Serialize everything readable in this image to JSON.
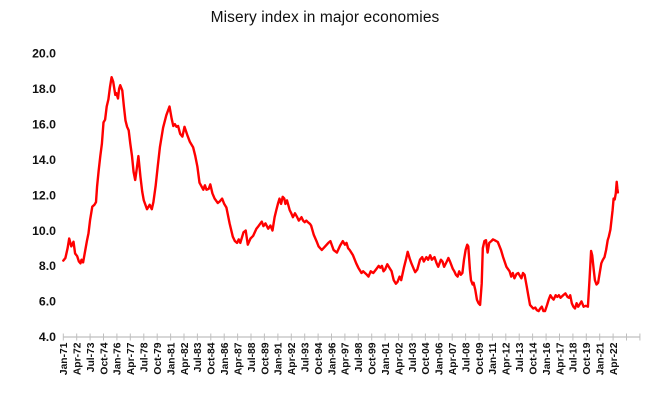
{
  "title": "Misery index in major economies",
  "chart_data": {
    "type": "line",
    "title": "Misery index in major economies",
    "xlabel": "",
    "ylabel": "",
    "legend": "none",
    "grid": "off",
    "background": "#ffffff",
    "text_color": "#111111",
    "axis_color": "#bfbfbf",
    "y_axis": {
      "min": 4.0,
      "max": 20.0,
      "step": 2.0
    },
    "y_tick_labels": [
      "20.0",
      "18.0",
      "16.0",
      "14.0",
      "12.0",
      "10.0",
      "8.0",
      "6.0",
      "4.0"
    ],
    "x_axis": {
      "first_label": "Jan-71",
      "last_label": "Apr-22",
      "interval_months": 15,
      "label_rotation_deg": -90
    },
    "x_tick_labels": [
      "Jan-71",
      "Apr-72",
      "Jul-73",
      "Oct-74",
      "Jan-76",
      "Apr-77",
      "Jul-78",
      "Oct-79",
      "Jan-81",
      "Apr-82",
      "Jul-83",
      "Oct-84",
      "Jan-86",
      "Apr-87",
      "Jul-88",
      "Oct-89",
      "Jan-91",
      "Apr-92",
      "Jul-93",
      "Oct-94",
      "Jan-96",
      "Apr-97",
      "Jul-98",
      "Oct-99",
      "Jan-01",
      "Apr-02",
      "Jul-03",
      "Oct-04",
      "Jan-06",
      "Apr-07",
      "Jul-08",
      "Oct-09",
      "Jan-11",
      "Apr-12",
      "Jul-13",
      "Oct-14",
      "Jan-16",
      "Apr-17",
      "Jul-18",
      "Oct-19",
      "Jan-21",
      "Apr-22"
    ],
    "series": [
      {
        "name": "Misery index",
        "color": "#ff0000",
        "points": [
          [
            1971.0,
            8.3
          ],
          [
            1971.2,
            8.45
          ],
          [
            1971.4,
            9.0
          ],
          [
            1971.55,
            9.55
          ],
          [
            1971.75,
            9.1
          ],
          [
            1971.95,
            9.37
          ],
          [
            1972.1,
            8.7
          ],
          [
            1972.3,
            8.55
          ],
          [
            1972.45,
            8.25
          ],
          [
            1972.6,
            8.15
          ],
          [
            1972.7,
            8.35
          ],
          [
            1972.85,
            8.2
          ],
          [
            1973.05,
            8.9
          ],
          [
            1973.2,
            9.4
          ],
          [
            1973.35,
            9.85
          ],
          [
            1973.5,
            10.6
          ],
          [
            1973.7,
            11.35
          ],
          [
            1973.9,
            11.45
          ],
          [
            1974.05,
            11.6
          ],
          [
            1974.15,
            12.5
          ],
          [
            1974.3,
            13.4
          ],
          [
            1974.45,
            14.2
          ],
          [
            1974.6,
            14.9
          ],
          [
            1974.75,
            16.1
          ],
          [
            1974.9,
            16.25
          ],
          [
            1975.05,
            17.0
          ],
          [
            1975.2,
            17.4
          ],
          [
            1975.35,
            18.1
          ],
          [
            1975.5,
            18.65
          ],
          [
            1975.65,
            18.4
          ],
          [
            1975.85,
            17.65
          ],
          [
            1975.95,
            17.75
          ],
          [
            1976.1,
            17.45
          ],
          [
            1976.2,
            18.0
          ],
          [
            1976.3,
            18.2
          ],
          [
            1976.5,
            17.9
          ],
          [
            1976.65,
            17.0
          ],
          [
            1976.8,
            16.2
          ],
          [
            1976.95,
            15.85
          ],
          [
            1977.1,
            15.65
          ],
          [
            1977.25,
            14.9
          ],
          [
            1977.4,
            14.2
          ],
          [
            1977.55,
            13.3
          ],
          [
            1977.7,
            12.85
          ],
          [
            1977.85,
            13.5
          ],
          [
            1978.0,
            14.2
          ],
          [
            1978.2,
            13.0
          ],
          [
            1978.35,
            12.2
          ],
          [
            1978.5,
            11.7
          ],
          [
            1978.8,
            11.2
          ],
          [
            1979.05,
            11.45
          ],
          [
            1979.25,
            11.2
          ],
          [
            1979.4,
            11.6
          ],
          [
            1979.6,
            12.5
          ],
          [
            1979.8,
            13.6
          ],
          [
            1980.0,
            14.7
          ],
          [
            1980.3,
            15.8
          ],
          [
            1980.6,
            16.5
          ],
          [
            1980.9,
            17.0
          ],
          [
            1981.1,
            16.3
          ],
          [
            1981.25,
            15.9
          ],
          [
            1981.4,
            16.0
          ],
          [
            1981.55,
            15.85
          ],
          [
            1981.7,
            15.9
          ],
          [
            1981.9,
            15.45
          ],
          [
            1982.1,
            15.3
          ],
          [
            1982.3,
            15.85
          ],
          [
            1982.55,
            15.4
          ],
          [
            1982.8,
            15.0
          ],
          [
            1983.1,
            14.7
          ],
          [
            1983.3,
            14.2
          ],
          [
            1983.5,
            13.6
          ],
          [
            1983.7,
            12.7
          ],
          [
            1984.05,
            12.3
          ],
          [
            1984.2,
            12.55
          ],
          [
            1984.35,
            12.3
          ],
          [
            1984.55,
            12.35
          ],
          [
            1984.7,
            12.6
          ],
          [
            1984.9,
            12.1
          ],
          [
            1985.1,
            11.8
          ],
          [
            1985.4,
            11.55
          ],
          [
            1985.6,
            11.65
          ],
          [
            1985.8,
            11.8
          ],
          [
            1986.0,
            11.5
          ],
          [
            1986.2,
            11.3
          ],
          [
            1986.5,
            10.4
          ],
          [
            1986.8,
            9.65
          ],
          [
            1987.0,
            9.4
          ],
          [
            1987.2,
            9.3
          ],
          [
            1987.35,
            9.5
          ],
          [
            1987.5,
            9.3
          ],
          [
            1987.8,
            9.9
          ],
          [
            1988.0,
            10.0
          ],
          [
            1988.2,
            9.2
          ],
          [
            1988.45,
            9.55
          ],
          [
            1988.7,
            9.7
          ],
          [
            1989.0,
            10.1
          ],
          [
            1989.2,
            10.25
          ],
          [
            1989.5,
            10.5
          ],
          [
            1989.65,
            10.25
          ],
          [
            1989.85,
            10.4
          ],
          [
            1990.1,
            10.1
          ],
          [
            1990.3,
            10.28
          ],
          [
            1990.5,
            10.0
          ],
          [
            1990.7,
            10.75
          ],
          [
            1990.85,
            11.15
          ],
          [
            1991.0,
            11.5
          ],
          [
            1991.15,
            11.8
          ],
          [
            1991.3,
            11.5
          ],
          [
            1991.45,
            11.9
          ],
          [
            1991.6,
            11.8
          ],
          [
            1991.7,
            11.5
          ],
          [
            1991.85,
            11.7
          ],
          [
            1992.1,
            11.15
          ],
          [
            1992.25,
            10.97
          ],
          [
            1992.4,
            10.75
          ],
          [
            1992.6,
            10.97
          ],
          [
            1992.8,
            10.75
          ],
          [
            1992.95,
            10.56
          ],
          [
            1993.2,
            10.75
          ],
          [
            1993.35,
            10.56
          ],
          [
            1993.5,
            10.47
          ],
          [
            1993.65,
            10.56
          ],
          [
            1993.8,
            10.47
          ],
          [
            1994.0,
            10.37
          ],
          [
            1994.1,
            10.28
          ],
          [
            1994.35,
            9.75
          ],
          [
            1994.6,
            9.4
          ],
          [
            1994.8,
            9.1
          ],
          [
            1995.1,
            8.9
          ],
          [
            1995.4,
            9.1
          ],
          [
            1995.7,
            9.3
          ],
          [
            1995.9,
            9.4
          ],
          [
            1996.2,
            8.9
          ],
          [
            1996.5,
            8.75
          ],
          [
            1996.8,
            9.15
          ],
          [
            1997.05,
            9.4
          ],
          [
            1997.25,
            9.2
          ],
          [
            1997.4,
            9.3
          ],
          [
            1997.55,
            9.0
          ],
          [
            1997.7,
            8.9
          ],
          [
            1998.0,
            8.6
          ],
          [
            1998.3,
            8.15
          ],
          [
            1998.5,
            7.9
          ],
          [
            1998.8,
            7.6
          ],
          [
            1998.95,
            7.7
          ],
          [
            1999.3,
            7.5
          ],
          [
            1999.45,
            7.4
          ],
          [
            1999.65,
            7.7
          ],
          [
            1999.9,
            7.6
          ],
          [
            2000.15,
            7.8
          ],
          [
            2000.4,
            8.0
          ],
          [
            2000.55,
            7.9
          ],
          [
            2000.7,
            8.0
          ],
          [
            2000.85,
            7.7
          ],
          [
            2001.0,
            7.8
          ],
          [
            2001.2,
            8.1
          ],
          [
            2001.4,
            7.9
          ],
          [
            2001.6,
            7.7
          ],
          [
            2001.8,
            7.2
          ],
          [
            2002.0,
            7.0
          ],
          [
            2002.15,
            7.1
          ],
          [
            2002.35,
            7.4
          ],
          [
            2002.5,
            7.2
          ],
          [
            2002.75,
            7.9
          ],
          [
            2002.95,
            8.4
          ],
          [
            2003.1,
            8.8
          ],
          [
            2003.3,
            8.4
          ],
          [
            2003.45,
            8.15
          ],
          [
            2003.65,
            7.85
          ],
          [
            2003.8,
            7.65
          ],
          [
            2004.0,
            7.8
          ],
          [
            2004.25,
            8.35
          ],
          [
            2004.45,
            8.5
          ],
          [
            2004.6,
            8.25
          ],
          [
            2004.85,
            8.5
          ],
          [
            2005.0,
            8.35
          ],
          [
            2005.2,
            8.6
          ],
          [
            2005.35,
            8.35
          ],
          [
            2005.6,
            8.5
          ],
          [
            2005.8,
            8.15
          ],
          [
            2005.95,
            7.95
          ],
          [
            2006.2,
            8.35
          ],
          [
            2006.35,
            8.25
          ],
          [
            2006.5,
            7.95
          ],
          [
            2006.75,
            8.25
          ],
          [
            2006.9,
            8.45
          ],
          [
            2007.05,
            8.25
          ],
          [
            2007.3,
            7.85
          ],
          [
            2007.45,
            7.7
          ],
          [
            2007.6,
            7.5
          ],
          [
            2007.75,
            7.4
          ],
          [
            2007.9,
            7.7
          ],
          [
            2008.05,
            7.5
          ],
          [
            2008.2,
            7.6
          ],
          [
            2008.35,
            8.35
          ],
          [
            2008.5,
            8.9
          ],
          [
            2008.65,
            9.2
          ],
          [
            2008.75,
            9.1
          ],
          [
            2008.9,
            7.8
          ],
          [
            2009.0,
            7.2
          ],
          [
            2009.15,
            6.95
          ],
          [
            2009.25,
            7.05
          ],
          [
            2009.4,
            6.65
          ],
          [
            2009.55,
            6.1
          ],
          [
            2009.7,
            5.9
          ],
          [
            2009.85,
            5.8
          ],
          [
            2010.0,
            7.0
          ],
          [
            2010.1,
            9.0
          ],
          [
            2010.25,
            9.4
          ],
          [
            2010.4,
            9.45
          ],
          [
            2010.55,
            8.75
          ],
          [
            2010.7,
            9.3
          ],
          [
            2010.9,
            9.4
          ],
          [
            2011.05,
            9.5
          ],
          [
            2011.2,
            9.45
          ],
          [
            2011.5,
            9.35
          ],
          [
            2011.8,
            8.9
          ],
          [
            2012.0,
            8.5
          ],
          [
            2012.3,
            7.95
          ],
          [
            2012.6,
            7.7
          ],
          [
            2012.75,
            7.4
          ],
          [
            2012.9,
            7.6
          ],
          [
            2013.05,
            7.3
          ],
          [
            2013.25,
            7.55
          ],
          [
            2013.4,
            7.6
          ],
          [
            2013.55,
            7.45
          ],
          [
            2013.7,
            7.3
          ],
          [
            2013.85,
            7.6
          ],
          [
            2014.0,
            7.5
          ],
          [
            2014.2,
            6.85
          ],
          [
            2014.35,
            6.3
          ],
          [
            2014.5,
            5.8
          ],
          [
            2014.65,
            5.7
          ],
          [
            2014.8,
            5.6
          ],
          [
            2015.0,
            5.65
          ],
          [
            2015.15,
            5.5
          ],
          [
            2015.3,
            5.45
          ],
          [
            2015.45,
            5.6
          ],
          [
            2015.6,
            5.7
          ],
          [
            2015.75,
            5.45
          ],
          [
            2015.9,
            5.45
          ],
          [
            2016.1,
            5.8
          ],
          [
            2016.25,
            6.1
          ],
          [
            2016.4,
            6.35
          ],
          [
            2016.55,
            6.2
          ],
          [
            2016.7,
            6.1
          ],
          [
            2016.9,
            6.35
          ],
          [
            2017.05,
            6.25
          ],
          [
            2017.2,
            6.35
          ],
          [
            2017.35,
            6.2
          ],
          [
            2017.6,
            6.35
          ],
          [
            2017.8,
            6.45
          ],
          [
            2018.0,
            6.25
          ],
          [
            2018.15,
            6.2
          ],
          [
            2018.25,
            6.35
          ],
          [
            2018.4,
            5.9
          ],
          [
            2018.55,
            5.7
          ],
          [
            2018.7,
            5.6
          ],
          [
            2018.85,
            5.9
          ],
          [
            2019.0,
            5.7
          ],
          [
            2019.15,
            5.85
          ],
          [
            2019.3,
            6.0
          ],
          [
            2019.5,
            5.7
          ],
          [
            2019.7,
            5.75
          ],
          [
            2019.9,
            5.7
          ],
          [
            2020.05,
            7.2
          ],
          [
            2020.2,
            8.85
          ],
          [
            2020.3,
            8.6
          ],
          [
            2020.45,
            7.75
          ],
          [
            2020.55,
            7.2
          ],
          [
            2020.7,
            6.95
          ],
          [
            2020.85,
            7.05
          ],
          [
            2021.0,
            7.6
          ],
          [
            2021.15,
            8.15
          ],
          [
            2021.3,
            8.35
          ],
          [
            2021.45,
            8.5
          ],
          [
            2021.6,
            8.9
          ],
          [
            2021.75,
            9.45
          ],
          [
            2021.85,
            9.65
          ],
          [
            2022.0,
            10.05
          ],
          [
            2022.1,
            10.6
          ],
          [
            2022.2,
            11.15
          ],
          [
            2022.3,
            11.8
          ],
          [
            2022.4,
            11.75
          ],
          [
            2022.5,
            12.1
          ],
          [
            2022.58,
            12.75
          ],
          [
            2022.65,
            12.35
          ],
          [
            2022.7,
            12.15
          ]
        ]
      }
    ]
  }
}
